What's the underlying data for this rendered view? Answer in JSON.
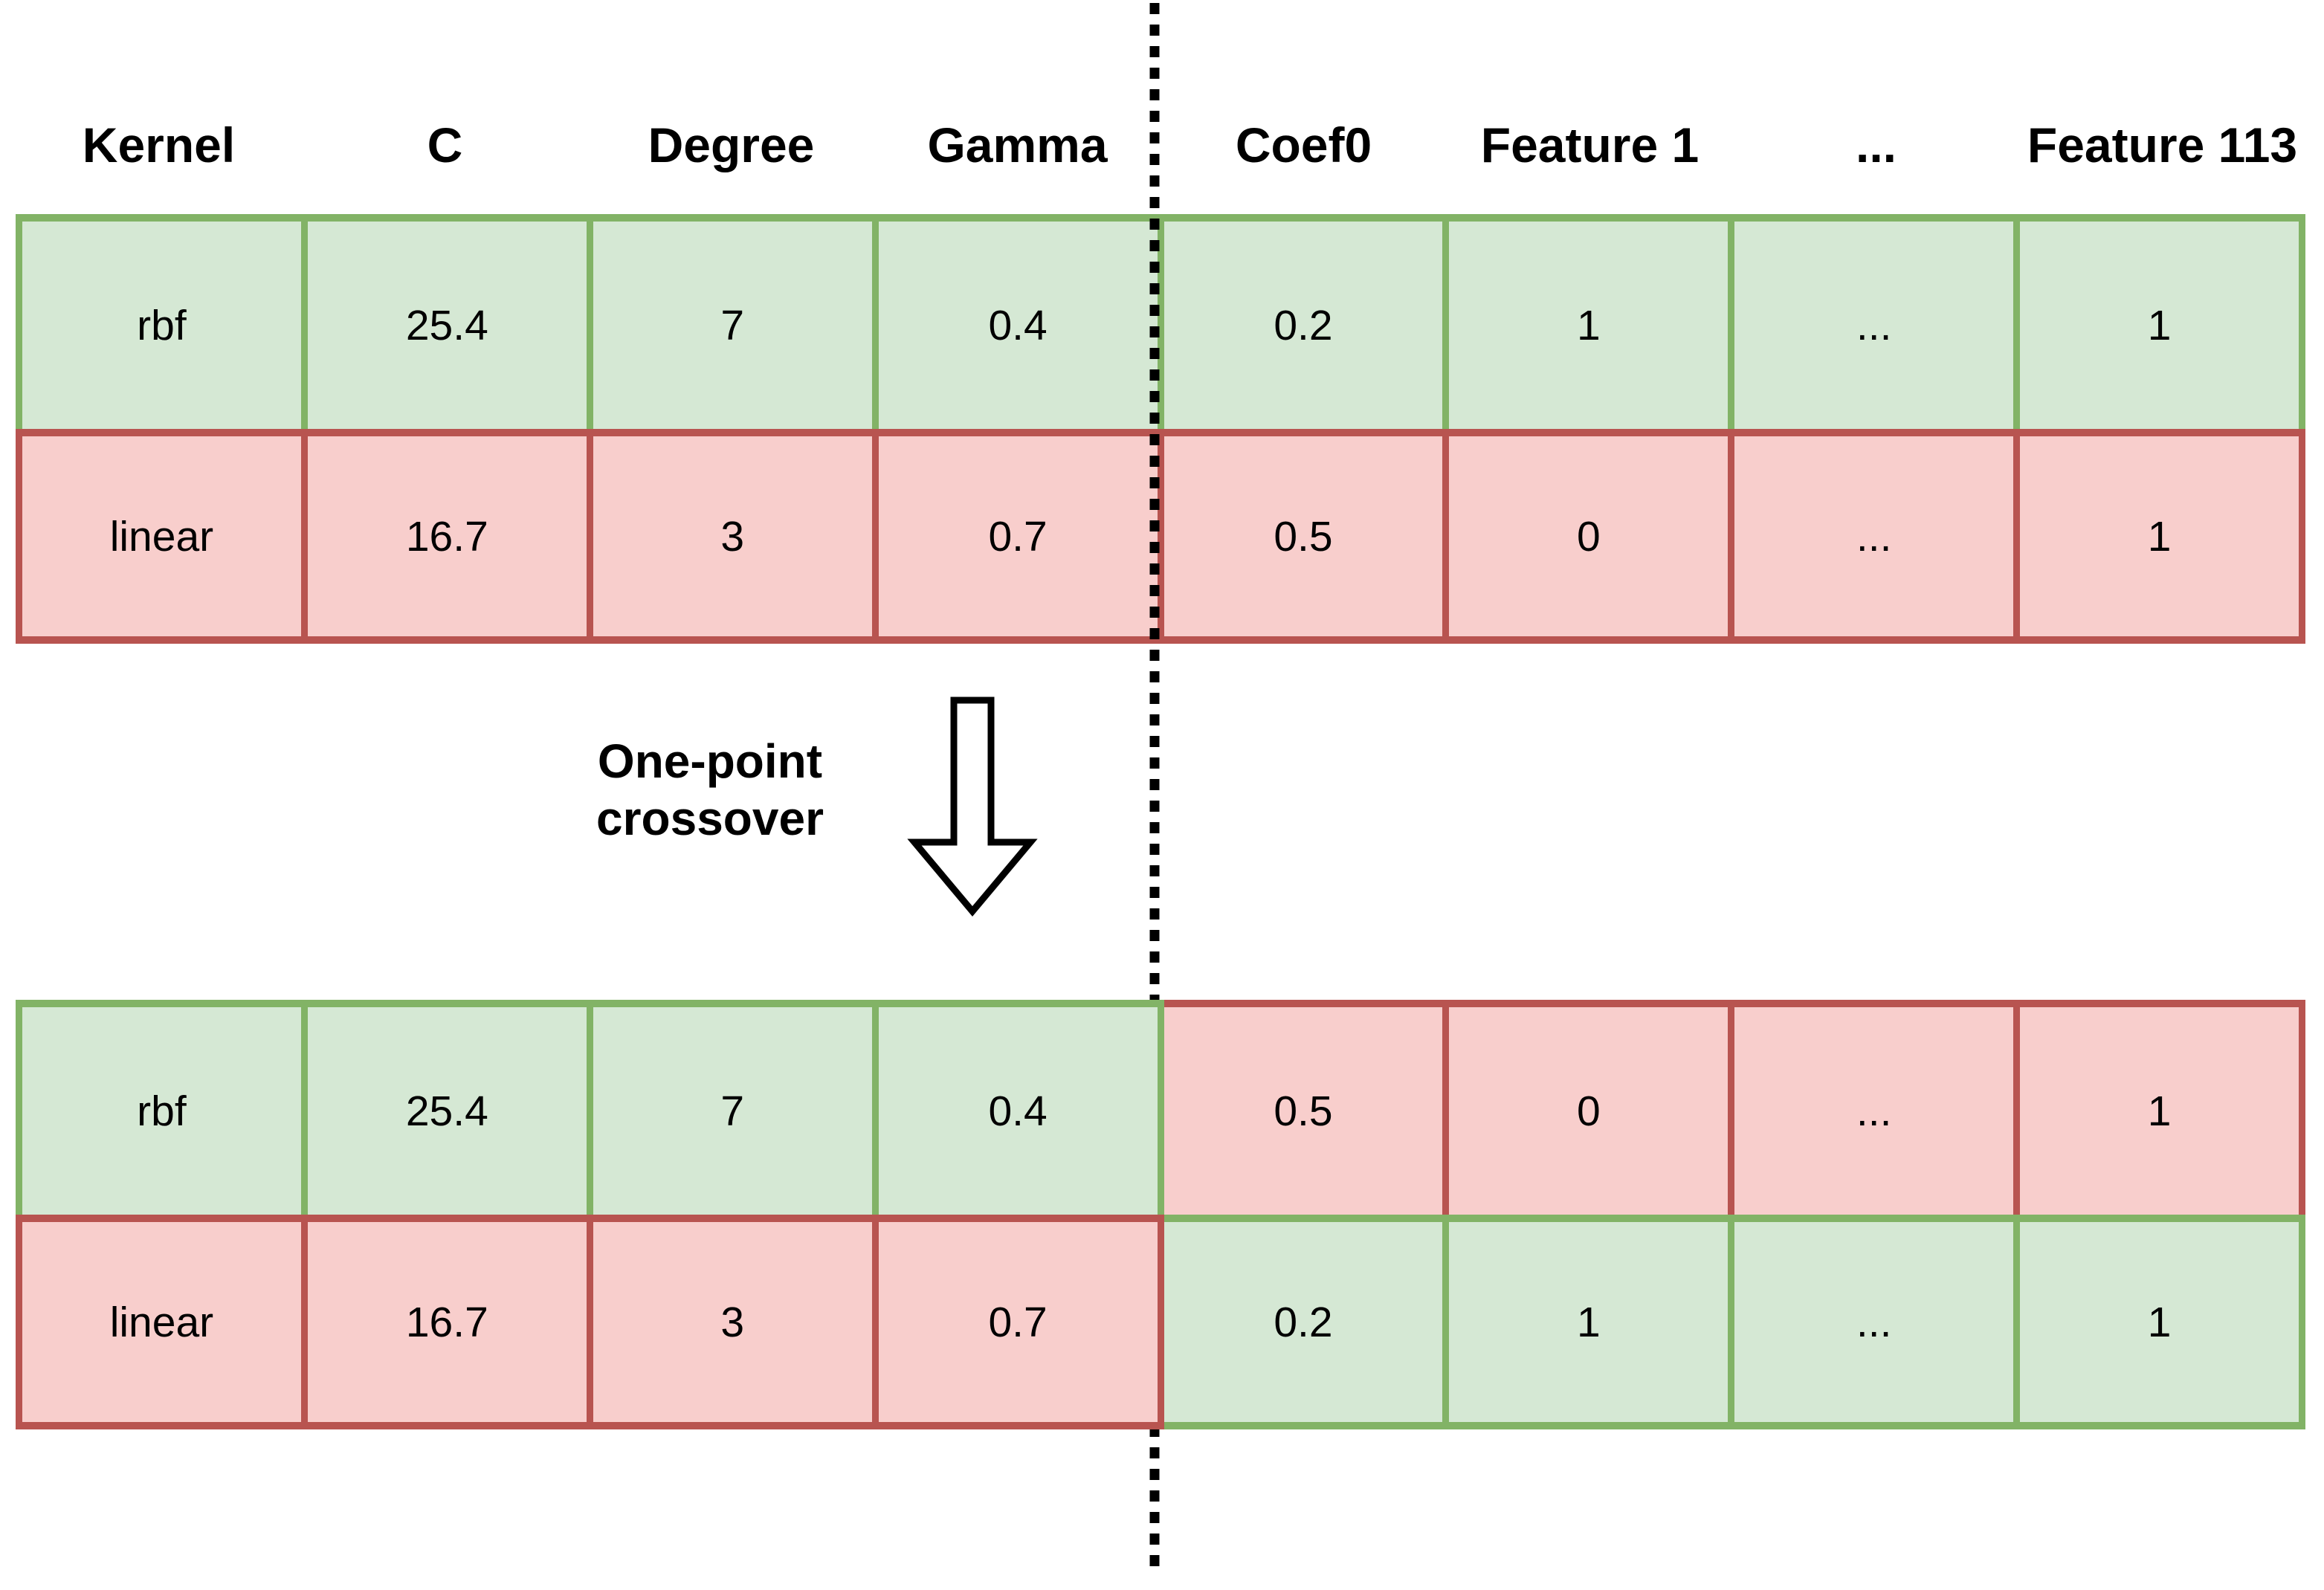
{
  "header": {
    "columns": [
      "Kernel",
      "C",
      "Degree",
      "Gamma",
      "Coef0",
      "Feature 1",
      "...",
      "Feature 113"
    ]
  },
  "crossover": {
    "label_line1": "One-point",
    "label_line2": "crossover"
  },
  "parents_table": {
    "rows": [
      {
        "name": "parent-chromosome-1",
        "cells": [
          "rbf",
          "25.4",
          "7",
          "0.4",
          "0.2",
          "1",
          "...",
          "1"
        ],
        "colors": [
          "green",
          "green",
          "green",
          "green",
          "green",
          "green",
          "green",
          "green"
        ]
      },
      {
        "name": "parent-chromosome-2",
        "cells": [
          "linear",
          "16.7",
          "3",
          "0.7",
          "0.5",
          "0",
          "...",
          "1"
        ],
        "colors": [
          "red",
          "red",
          "red",
          "red",
          "red",
          "red",
          "red",
          "red"
        ]
      }
    ]
  },
  "offspring_table": {
    "rows": [
      {
        "name": "offspring-chromosome-1",
        "cells": [
          "rbf",
          "25.4",
          "7",
          "0.4",
          "0.5",
          "0",
          "...",
          "1"
        ],
        "colors": [
          "green",
          "green",
          "green",
          "green",
          "red",
          "red",
          "red",
          "red"
        ]
      },
      {
        "name": "offspring-chromosome-2",
        "cells": [
          "linear",
          "16.7",
          "3",
          "0.7",
          "0.2",
          "1",
          "...",
          "1"
        ],
        "colors": [
          "red",
          "red",
          "red",
          "red",
          "green",
          "green",
          "green",
          "green"
        ]
      }
    ]
  },
  "colors": {
    "green_fill": "#d5e8d4",
    "green_stroke": "#82b366",
    "red_fill": "#f8cecc",
    "red_stroke": "#b85450",
    "line_color": "#000000",
    "arrow_fill": "#ffffff"
  }
}
